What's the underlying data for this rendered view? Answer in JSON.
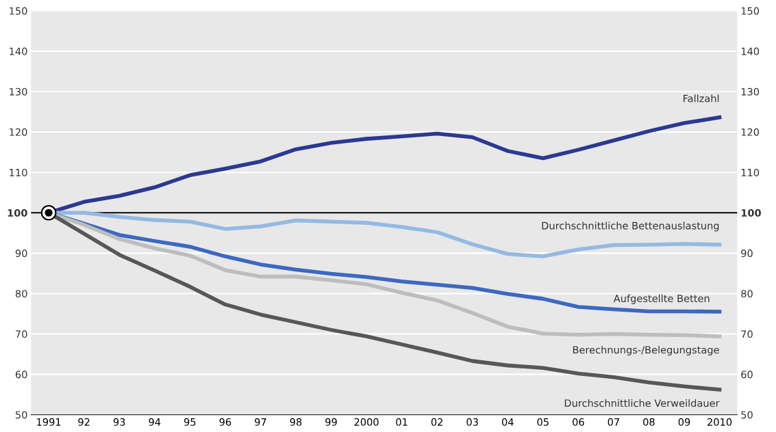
{
  "chart_data": {
    "type": "line",
    "categories": [
      "1991",
      "92",
      "93",
      "94",
      "95",
      "96",
      "97",
      "98",
      "99",
      "2000",
      "01",
      "02",
      "03",
      "04",
      "05",
      "06",
      "07",
      "08",
      "09",
      "2010"
    ],
    "series": [
      {
        "name": "Fallzahl",
        "color": "#2b3990",
        "values": [
          100,
          102.7,
          104.2,
          106.3,
          109.3,
          110.9,
          112.7,
          115.7,
          117.3,
          118.3,
          118.9,
          119.6,
          118.7,
          115.3,
          113.5,
          115.6,
          117.9,
          120.2,
          122.2,
          123.6
        ]
      },
      {
        "name": "Durchschnittliche Bettenauslastung",
        "color": "#94b9e3",
        "values": [
          100,
          100,
          99.0,
          98.2,
          97.8,
          96.0,
          96.6,
          98.1,
          97.8,
          97.5,
          96.5,
          95.2,
          92.2,
          89.8,
          89.2,
          90.9,
          92.0,
          92.1,
          92.3,
          92.1
        ]
      },
      {
        "name": "Aufgestellte Betten",
        "color": "#3d68c0",
        "values": [
          100,
          97.3,
          94.5,
          93.0,
          91.6,
          89.2,
          87.2,
          85.9,
          84.9,
          84.1,
          83.0,
          82.2,
          81.4,
          79.9,
          78.7,
          76.7,
          76.1,
          75.6,
          75.6,
          75.5
        ]
      },
      {
        "name": "Berechnungs-/Belegungstage",
        "color": "#bdbdbd",
        "values": [
          100,
          97.0,
          93.5,
          91.2,
          89.4,
          85.8,
          84.2,
          84.2,
          83.3,
          82.3,
          80.2,
          78.3,
          75.2,
          71.8,
          70.1,
          69.8,
          70.0,
          69.8,
          69.7,
          69.4
        ]
      },
      {
        "name": "Durchschnittliche Verweildauer",
        "color": "#575757",
        "values": [
          100,
          94.8,
          89.6,
          85.7,
          81.7,
          77.3,
          74.8,
          72.9,
          71.0,
          69.4,
          67.4,
          65.4,
          63.3,
          62.2,
          61.6,
          60.2,
          59.3,
          58.0,
          57.0,
          56.2
        ]
      }
    ],
    "ylim": [
      50,
      150
    ],
    "yticks": [
      50,
      60,
      70,
      80,
      90,
      100,
      110,
      120,
      130,
      140,
      150
    ],
    "y2lim": [
      50,
      150
    ],
    "y2ticks": [
      50,
      60,
      70,
      80,
      90,
      100,
      110,
      120,
      130,
      140,
      150
    ],
    "ref_lines": [
      {
        "axis": "y",
        "value": 100,
        "color": "#000000"
      }
    ],
    "grid": "y",
    "legend": false,
    "marker": "none",
    "line_style": "solid"
  }
}
